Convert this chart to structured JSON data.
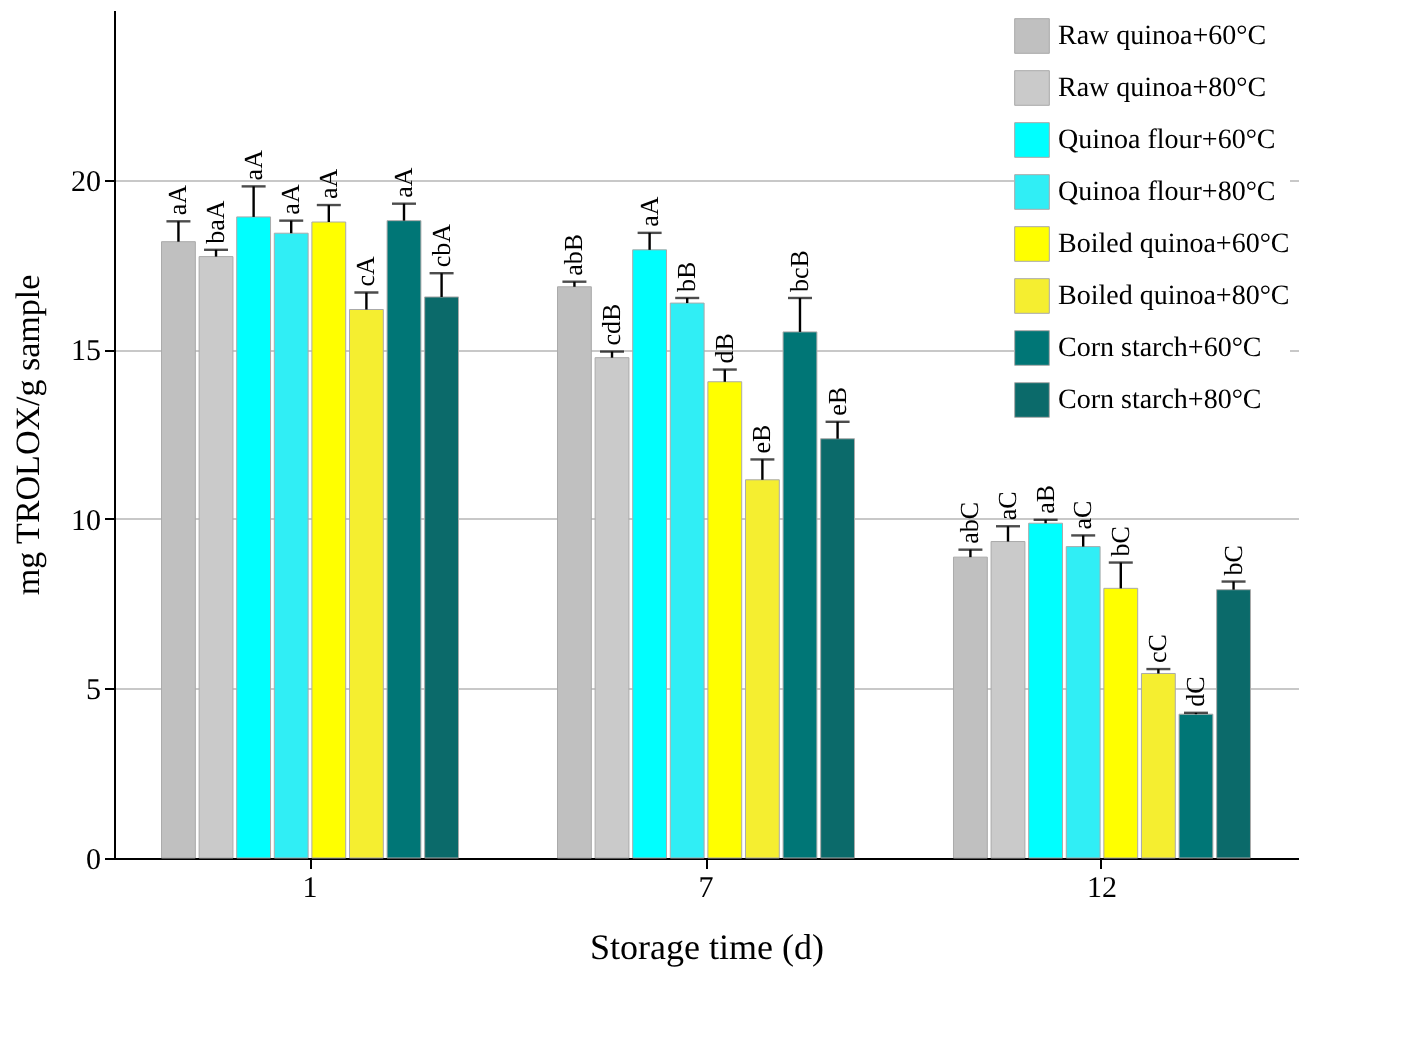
{
  "chart_data": {
    "type": "bar",
    "xlabel": "Storage time (d)",
    "ylabel": "mg TROLOX/g sample",
    "categories": [
      "1",
      "7",
      "12"
    ],
    "ylim": [
      0,
      25
    ],
    "yticks": [
      0,
      5,
      10,
      15,
      20
    ],
    "grid": "y",
    "legend": "top right",
    "series": [
      {
        "name": "Raw quinoa+60°C",
        "color": "#c0c0c0",
        "values": [
          18.17,
          16.84,
          8.87
        ],
        "errors": [
          0.6,
          0.15,
          0.22
        ],
        "value_labels": [
          "aA",
          "abB",
          "abC"
        ]
      },
      {
        "name": "Raw quinoa+80°C",
        "color": "#cacaca",
        "values": [
          17.73,
          14.75,
          9.33
        ],
        "errors": [
          0.2,
          0.18,
          0.45
        ],
        "value_labels": [
          "baA",
          "cdB",
          "aC"
        ]
      },
      {
        "name": "Quinoa flour+60°C",
        "color": "#00ffff",
        "values": [
          18.9,
          17.93,
          9.87
        ],
        "errors": [
          0.9,
          0.5,
          0.1
        ],
        "value_labels": [
          "aA",
          "aA",
          "aB"
        ]
      },
      {
        "name": "Quinoa flour+80°C",
        "color": "#30eef5",
        "values": [
          18.42,
          16.36,
          9.18
        ],
        "errors": [
          0.37,
          0.15,
          0.33
        ],
        "value_labels": [
          "aA",
          "bB",
          "aC"
        ]
      },
      {
        "name": "Boiled quinoa+60°C",
        "color": "#ffff00",
        "values": [
          18.75,
          14.04,
          7.95
        ],
        "errors": [
          0.5,
          0.36,
          0.76
        ],
        "value_labels": [
          "aA",
          "dB",
          "bC"
        ]
      },
      {
        "name": "Boiled quinoa+80°C",
        "color": "#f5ee30",
        "values": [
          16.17,
          11.15,
          5.44
        ],
        "errors": [
          0.5,
          0.6,
          0.13
        ],
        "value_labels": [
          "cA",
          "eB",
          "cC"
        ]
      },
      {
        "name": "Corn starch+60°C",
        "color": "#007676",
        "values": [
          18.79,
          15.51,
          4.24
        ],
        "errors": [
          0.5,
          1.0,
          0.04
        ],
        "value_labels": [
          "aA",
          "bcB",
          "dC"
        ]
      },
      {
        "name": "Corn starch+80°C",
        "color": "#0b6a6a",
        "values": [
          16.54,
          12.36,
          7.91
        ],
        "errors": [
          0.7,
          0.5,
          0.24
        ],
        "value_labels": [
          "cbA",
          "eB",
          "bC"
        ]
      }
    ]
  }
}
